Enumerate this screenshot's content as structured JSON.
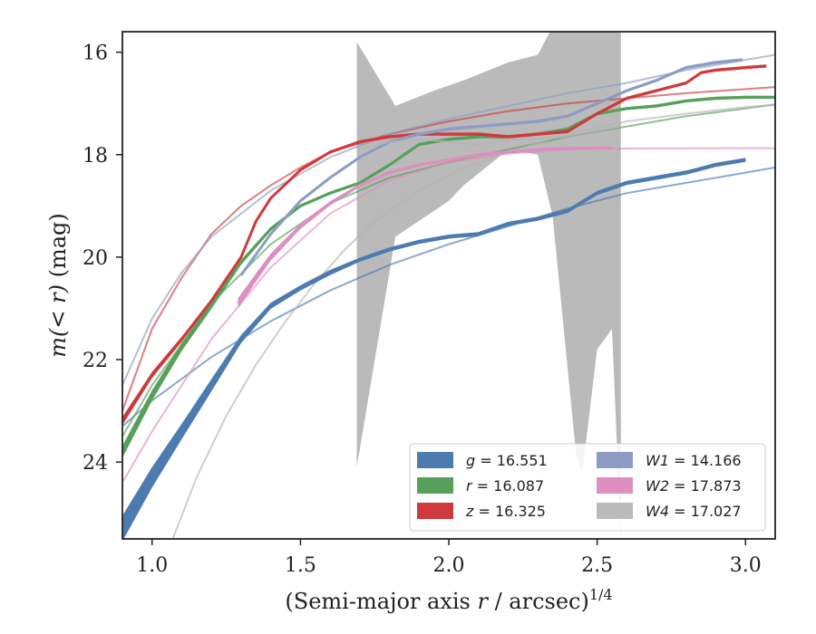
{
  "chart_data": {
    "type": "line",
    "title": "",
    "xlabel": {
      "prefix": "(Semi-major axis ",
      "var": "r",
      "suffix": " / arcsec)",
      "sup": "1/4"
    },
    "ylabel": {
      "prefix": "m(< r)",
      "suffix": " (mag)"
    },
    "xlim": [
      0.9,
      3.1
    ],
    "ylim": [
      25.5,
      15.6
    ],
    "y_inverted": true,
    "xticks": [
      1.0,
      1.5,
      2.0,
      2.5,
      3.0
    ],
    "xtick_labels": [
      "1.0",
      "1.5",
      "2.0",
      "2.5",
      "3.0"
    ],
    "yticks": [
      16,
      18,
      20,
      22,
      24
    ],
    "ytick_labels": [
      "16",
      "18",
      "20",
      "22",
      "24"
    ],
    "grid": false,
    "legend": {
      "position": "bottom-right",
      "columns": 2
    },
    "series": [
      {
        "name": "g = 16.551",
        "band": "g",
        "mag": "16.551",
        "color": "#4c7bb0",
        "profile": {
          "x": [
            0.9,
            1.0,
            1.1,
            1.2,
            1.3,
            1.4,
            1.5,
            1.6,
            1.7,
            1.8,
            1.9,
            2.0,
            2.1,
            2.2,
            2.3,
            2.4,
            2.5,
            2.6,
            2.7,
            2.8,
            2.9,
            3.0
          ],
          "y": [
            25.3,
            24.3,
            23.4,
            22.5,
            21.6,
            20.95,
            20.6,
            20.3,
            20.05,
            19.85,
            19.7,
            19.6,
            19.55,
            19.35,
            19.25,
            19.1,
            18.75,
            18.55,
            18.45,
            18.35,
            18.2,
            18.1
          ],
          "yerr": [
            0.25,
            0.2,
            0.15,
            0.12,
            0.08,
            0.06,
            0.05,
            0.05,
            0.04,
            0.04,
            0.04,
            0.04,
            0.04,
            0.04,
            0.04,
            0.04,
            0.04,
            0.04,
            0.04,
            0.04,
            0.04,
            0.04
          ]
        },
        "model": {
          "x": [
            0.9,
            1.0,
            1.2,
            1.4,
            1.6,
            1.8,
            2.0,
            2.2,
            2.4,
            2.6,
            2.8,
            3.0,
            3.1
          ],
          "y": [
            23.3,
            22.8,
            21.95,
            21.25,
            20.65,
            20.15,
            19.75,
            19.4,
            19.05,
            18.75,
            18.55,
            18.35,
            18.25
          ]
        }
      },
      {
        "name": "r = 16.087",
        "band": "r",
        "mag": "16.087",
        "color": "#56a05a",
        "profile": {
          "x": [
            0.9,
            1.0,
            1.1,
            1.2,
            1.3,
            1.4,
            1.5,
            1.6,
            1.7,
            1.8,
            1.9,
            2.0,
            2.1,
            2.2,
            2.3,
            2.4,
            2.5,
            2.6,
            2.7,
            2.8,
            2.9,
            3.0,
            3.1
          ],
          "y": [
            23.8,
            22.7,
            21.75,
            20.95,
            20.1,
            19.45,
            19.0,
            18.75,
            18.55,
            18.2,
            17.8,
            17.7,
            17.65,
            17.65,
            17.6,
            17.5,
            17.2,
            17.1,
            17.05,
            16.95,
            16.9,
            16.88,
            16.88
          ],
          "yerr": [
            0.12,
            0.1,
            0.08,
            0.06,
            0.05,
            0.04,
            0.03,
            0.03,
            0.03,
            0.03,
            0.03,
            0.03,
            0.03,
            0.03,
            0.03,
            0.03,
            0.03,
            0.03,
            0.03,
            0.03,
            0.03,
            0.03,
            0.03
          ]
        },
        "model": {
          "x": [
            0.9,
            1.0,
            1.2,
            1.4,
            1.6,
            1.8,
            2.0,
            2.2,
            2.4,
            2.6,
            2.8,
            3.0,
            3.1
          ],
          "y": [
            23.5,
            22.5,
            20.9,
            19.75,
            18.95,
            18.45,
            18.15,
            17.9,
            17.65,
            17.45,
            17.25,
            17.1,
            17.02
          ]
        }
      },
      {
        "name": "z = 16.325",
        "band": "z",
        "mag": "16.325",
        "color": "#d0393c",
        "profile": {
          "x": [
            0.9,
            1.0,
            1.1,
            1.2,
            1.3,
            1.35,
            1.4,
            1.5,
            1.6,
            1.7,
            1.8,
            1.9,
            2.0,
            2.1,
            2.2,
            2.3,
            2.4,
            2.5,
            2.6,
            2.7,
            2.8,
            2.85,
            2.9,
            3.0,
            3.07
          ],
          "y": [
            23.2,
            22.3,
            21.6,
            20.85,
            20.0,
            19.3,
            18.85,
            18.3,
            17.95,
            17.75,
            17.65,
            17.6,
            17.6,
            17.6,
            17.65,
            17.6,
            17.55,
            17.2,
            16.9,
            16.75,
            16.6,
            16.4,
            16.35,
            16.3,
            16.27
          ],
          "yerr": [
            0.08,
            0.06,
            0.05,
            0.04,
            0.03,
            0.03,
            0.03,
            0.03,
            0.03,
            0.03,
            0.03,
            0.03,
            0.03,
            0.03,
            0.03,
            0.03,
            0.03,
            0.03,
            0.03,
            0.03,
            0.03,
            0.03,
            0.03,
            0.03,
            0.03
          ]
        },
        "model": {
          "x": [
            0.9,
            1.0,
            1.1,
            1.2,
            1.3,
            1.4,
            1.5,
            1.6,
            1.8,
            2.0,
            2.2,
            2.4,
            2.6,
            2.8,
            3.0,
            3.1
          ],
          "y": [
            23.0,
            21.4,
            20.4,
            19.55,
            19.0,
            18.6,
            18.25,
            17.95,
            17.6,
            17.35,
            17.15,
            17.0,
            16.9,
            16.8,
            16.72,
            16.68
          ]
        }
      },
      {
        "name": "W1 = 14.166",
        "band": "W1",
        "mag": "14.166",
        "color": "#8c9cc4",
        "profile": {
          "x": [
            1.3,
            1.4,
            1.5,
            1.6,
            1.7,
            1.8,
            1.9,
            2.0,
            2.1,
            2.2,
            2.3,
            2.4,
            2.5,
            2.6,
            2.7,
            2.8,
            2.9,
            2.99
          ],
          "y": [
            20.35,
            19.55,
            18.9,
            18.45,
            18.05,
            17.75,
            17.6,
            17.5,
            17.45,
            17.4,
            17.35,
            17.25,
            17.0,
            16.75,
            16.55,
            16.3,
            16.2,
            16.15
          ],
          "yerr": [
            0.03,
            0.03,
            0.03,
            0.03,
            0.03,
            0.03,
            0.03,
            0.03,
            0.03,
            0.03,
            0.03,
            0.03,
            0.03,
            0.03,
            0.03,
            0.03,
            0.03,
            0.03
          ]
        },
        "model": {
          "x": [
            0.9,
            1.0,
            1.1,
            1.2,
            1.4,
            1.6,
            1.8,
            2.0,
            2.2,
            2.4,
            2.6,
            2.8,
            3.0,
            3.1
          ],
          "y": [
            22.5,
            21.2,
            20.3,
            19.6,
            18.7,
            18.05,
            17.6,
            17.3,
            17.05,
            16.8,
            16.6,
            16.35,
            16.15,
            16.05
          ]
        }
      },
      {
        "name": "W2 = 17.873",
        "band": "W2",
        "mag": "17.873",
        "color": "#dd8fbf",
        "profile": {
          "x": [
            1.29,
            1.35,
            1.4,
            1.5,
            1.6,
            1.7,
            1.8,
            1.9,
            2.0,
            2.1,
            2.2,
            2.3,
            2.4,
            2.5,
            2.55
          ],
          "y": [
            20.9,
            20.4,
            20.0,
            19.4,
            18.95,
            18.6,
            18.35,
            18.2,
            18.1,
            18.0,
            17.95,
            17.9,
            17.88,
            17.87,
            17.87
          ],
          "yerr": [
            0.1,
            0.08,
            0.07,
            0.05,
            0.04,
            0.03,
            0.03,
            0.03,
            0.03,
            0.03,
            0.03,
            0.03,
            0.03,
            0.03,
            0.03
          ]
        },
        "model": {
          "x": [
            0.9,
            1.0,
            1.2,
            1.4,
            1.6,
            1.8,
            2.0,
            2.2,
            2.4,
            2.6,
            2.8,
            3.0,
            3.1
          ],
          "y": [
            24.4,
            23.4,
            21.6,
            20.2,
            19.15,
            18.5,
            18.15,
            17.98,
            17.9,
            17.88,
            17.875,
            17.873,
            17.873
          ]
        }
      },
      {
        "name": "W4 = 17.027",
        "band": "W4",
        "mag": "17.027",
        "color": "#b3b3b3",
        "band_x": [
          1.69,
          1.82,
          1.95,
          2.0,
          2.05,
          2.2,
          2.3,
          2.35,
          2.43,
          2.45,
          2.5,
          2.55,
          2.58
        ],
        "band_upper": [
          15.8,
          17.05,
          16.75,
          16.65,
          16.55,
          16.2,
          16.05,
          15.5,
          15.5,
          15.5,
          15.5,
          15.5,
          15.5
        ],
        "band_lower": [
          24.1,
          19.6,
          19.1,
          18.9,
          18.6,
          17.9,
          18.0,
          19.2,
          23.9,
          24.2,
          21.8,
          21.4,
          25.5
        ],
        "profile": {
          "x": [
            1.69,
            1.8,
            1.9,
            2.0,
            2.1,
            2.2,
            2.3,
            2.4,
            2.5,
            2.58
          ],
          "y": [
            17.9,
            17.75,
            17.7,
            17.75,
            17.8,
            17.7,
            17.7,
            17.65,
            17.55,
            17.45
          ],
          "yerr": [
            0.0,
            0.0,
            0.0,
            0.0,
            0.0,
            0.0,
            0.0,
            0.0,
            0.0,
            0.0
          ]
        },
        "model": {
          "x": [
            1.07,
            1.15,
            1.25,
            1.35,
            1.45,
            1.55,
            1.65,
            1.75,
            1.9,
            2.05,
            2.2,
            2.4,
            2.6,
            2.8,
            3.0,
            3.1
          ],
          "y": [
            25.5,
            24.3,
            23.1,
            22.1,
            21.25,
            20.5,
            19.85,
            19.3,
            18.7,
            18.25,
            17.95,
            17.6,
            17.35,
            17.2,
            17.07,
            17.03
          ]
        }
      }
    ]
  }
}
